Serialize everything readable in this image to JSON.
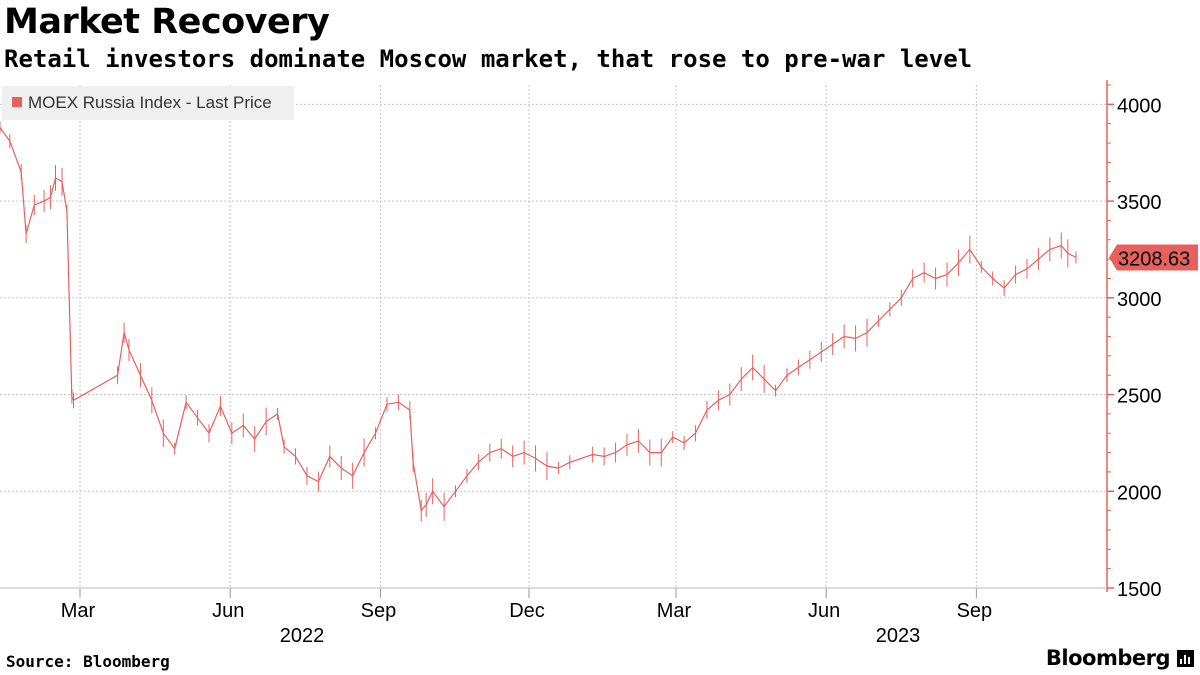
{
  "title": "Market Recovery",
  "subtitle": "Retail investors dominate Moscow market, that rose to pre-war level",
  "source": "Source: Bloomberg",
  "brand": "Bloomberg",
  "colors": {
    "series": "#e8605c",
    "grid": "#c8c8c8",
    "axis": "#e8605c",
    "legend_bg": "#efefef",
    "text": "#000000"
  },
  "chart_data": {
    "type": "line",
    "title": "Market Recovery",
    "subtitle": "Retail investors dominate Moscow market, that rose to pre-war level",
    "legend": [
      "MOEX Russia Index - Last Price"
    ],
    "legend_position": "top-left",
    "last_value_label": "3208.63",
    "y_axis_side": "right",
    "ylim": [
      1500,
      4100
    ],
    "yticks": [
      1500,
      2000,
      2500,
      3000,
      3500,
      4000
    ],
    "ytick_labels": [
      "1500",
      "2000",
      "2500",
      "3000",
      "3500",
      "4000"
    ],
    "xlim": [
      "2022-01-11",
      "2023-11-20"
    ],
    "xticks": [
      {
        "date": "2022-03-01",
        "label": "Mar"
      },
      {
        "date": "2022-06-01",
        "label": "Jun"
      },
      {
        "date": "2022-09-01",
        "label": "Sep"
      },
      {
        "date": "2022-12-01",
        "label": "Dec"
      },
      {
        "date": "2023-03-01",
        "label": "Mar"
      },
      {
        "date": "2023-06-01",
        "label": "Jun"
      },
      {
        "date": "2023-09-01",
        "label": "Sep"
      }
    ],
    "year_labels": [
      {
        "label": "2022",
        "date": "2022-07-15"
      },
      {
        "label": "2023",
        "date": "2023-07-15"
      }
    ],
    "grid": true,
    "series": [
      {
        "name": "MOEX Russia Index - Last Price",
        "points": [
          [
            "2022-01-11",
            3880
          ],
          [
            "2022-01-17",
            3810
          ],
          [
            "2022-01-24",
            3650
          ],
          [
            "2022-01-27",
            3330
          ],
          [
            "2022-02-01",
            3480
          ],
          [
            "2022-02-07",
            3500
          ],
          [
            "2022-02-11",
            3520
          ],
          [
            "2022-02-14",
            3620
          ],
          [
            "2022-02-18",
            3600
          ],
          [
            "2022-02-21",
            3450
          ],
          [
            "2022-02-24",
            2490
          ],
          [
            "2022-02-25",
            2470
          ],
          [
            "2022-03-24",
            2600
          ],
          [
            "2022-03-28",
            2820
          ],
          [
            "2022-03-31",
            2730
          ],
          [
            "2022-04-07",
            2600
          ],
          [
            "2022-04-14",
            2470
          ],
          [
            "2022-04-21",
            2300
          ],
          [
            "2022-04-28",
            2220
          ],
          [
            "2022-05-05",
            2460
          ],
          [
            "2022-05-12",
            2380
          ],
          [
            "2022-05-19",
            2300
          ],
          [
            "2022-05-26",
            2440
          ],
          [
            "2022-06-02",
            2300
          ],
          [
            "2022-06-09",
            2340
          ],
          [
            "2022-06-16",
            2270
          ],
          [
            "2022-06-23",
            2360
          ],
          [
            "2022-06-30",
            2400
          ],
          [
            "2022-07-04",
            2230
          ],
          [
            "2022-07-11",
            2180
          ],
          [
            "2022-07-18",
            2080
          ],
          [
            "2022-07-25",
            2050
          ],
          [
            "2022-08-01",
            2180
          ],
          [
            "2022-08-08",
            2120
          ],
          [
            "2022-08-15",
            2080
          ],
          [
            "2022-08-22",
            2200
          ],
          [
            "2022-08-29",
            2300
          ],
          [
            "2022-09-05",
            2450
          ],
          [
            "2022-09-12",
            2460
          ],
          [
            "2022-09-19",
            2420
          ],
          [
            "2022-09-21",
            2150
          ],
          [
            "2022-09-26",
            1900
          ],
          [
            "2022-09-29",
            1930
          ],
          [
            "2022-10-03",
            2000
          ],
          [
            "2022-10-10",
            1920
          ],
          [
            "2022-10-17",
            2000
          ],
          [
            "2022-10-24",
            2080
          ],
          [
            "2022-10-31",
            2150
          ],
          [
            "2022-11-07",
            2200
          ],
          [
            "2022-11-14",
            2220
          ],
          [
            "2022-11-21",
            2180
          ],
          [
            "2022-11-28",
            2200
          ],
          [
            "2022-12-05",
            2170
          ],
          [
            "2022-12-12",
            2130
          ],
          [
            "2022-12-19",
            2120
          ],
          [
            "2022-12-26",
            2150
          ],
          [
            "2023-01-09",
            2190
          ],
          [
            "2023-01-16",
            2180
          ],
          [
            "2023-01-23",
            2200
          ],
          [
            "2023-01-30",
            2240
          ],
          [
            "2023-02-06",
            2260
          ],
          [
            "2023-02-13",
            2200
          ],
          [
            "2023-02-20",
            2200
          ],
          [
            "2023-02-27",
            2280
          ],
          [
            "2023-03-06",
            2250
          ],
          [
            "2023-03-13",
            2300
          ],
          [
            "2023-03-20",
            2420
          ],
          [
            "2023-03-27",
            2470
          ],
          [
            "2023-04-03",
            2500
          ],
          [
            "2023-04-10",
            2580
          ],
          [
            "2023-04-17",
            2640
          ],
          [
            "2023-04-24",
            2580
          ],
          [
            "2023-05-01",
            2520
          ],
          [
            "2023-05-08",
            2600
          ],
          [
            "2023-05-15",
            2640
          ],
          [
            "2023-05-22",
            2680
          ],
          [
            "2023-05-29",
            2720
          ],
          [
            "2023-06-05",
            2760
          ],
          [
            "2023-06-12",
            2800
          ],
          [
            "2023-06-19",
            2790
          ],
          [
            "2023-06-26",
            2820
          ],
          [
            "2023-07-03",
            2880
          ],
          [
            "2023-07-10",
            2940
          ],
          [
            "2023-07-17",
            3000
          ],
          [
            "2023-07-24",
            3100
          ],
          [
            "2023-07-31",
            3130
          ],
          [
            "2023-08-07",
            3100
          ],
          [
            "2023-08-14",
            3120
          ],
          [
            "2023-08-21",
            3180
          ],
          [
            "2023-08-28",
            3250
          ],
          [
            "2023-09-04",
            3160
          ],
          [
            "2023-09-11",
            3100
          ],
          [
            "2023-09-18",
            3050
          ],
          [
            "2023-09-25",
            3120
          ],
          [
            "2023-10-02",
            3150
          ],
          [
            "2023-10-09",
            3200
          ],
          [
            "2023-10-16",
            3250
          ],
          [
            "2023-10-23",
            3270
          ],
          [
            "2023-10-27",
            3230
          ],
          [
            "2023-11-01",
            3208.63
          ]
        ]
      }
    ]
  }
}
